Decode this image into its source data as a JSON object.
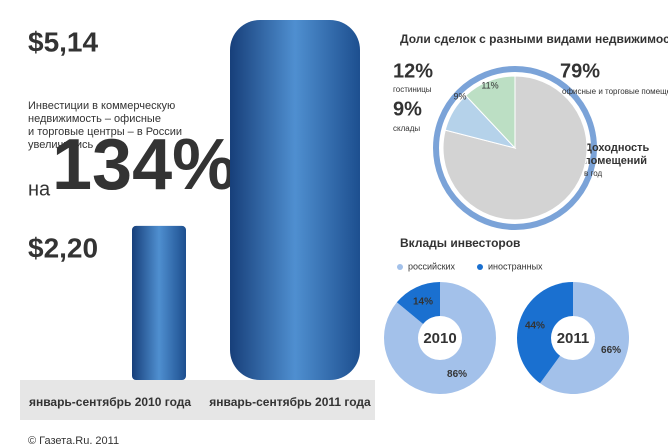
{
  "intro": {
    "text_lines": [
      "Инвестиции в коммерческую",
      "недвижимость – офисные",
      "и торговые центры – в России",
      "увеличились"
    ],
    "prefix": "на",
    "growth": "134%"
  },
  "footer": "© Газета.Ru, 2011",
  "chart_data": [
    {
      "type": "bar",
      "categories": [
        "январь-сентябрь 2010 года",
        "январь-сентябрь 2011 года"
      ],
      "values": [
        2.2,
        5.14
      ],
      "value_labels": [
        "$2,20",
        "$5,14"
      ],
      "color": "#3d7fc4"
    },
    {
      "type": "pie",
      "title": "Доли сделок с разными видами недвижимости",
      "categories": [
        "офисные и торговые помещения",
        "склады",
        "гостиницы"
      ],
      "values": [
        79,
        9,
        12
      ],
      "value_labels": [
        "79%",
        "9%",
        "12%"
      ],
      "colors": [
        "#d3d3d3",
        "#b5d2ea",
        "#bcdfc4"
      ],
      "wedge_labels": [
        "9%",
        "11%"
      ],
      "ring_label": [
        "Доходность",
        "помещений",
        "в год"
      ]
    },
    {
      "type": "donut",
      "title": "Вклады инвесторов",
      "legend": [
        "российских",
        "иностранных"
      ],
      "colors": [
        "#a3c1ea",
        "#1a70d0"
      ],
      "charts": [
        {
          "name": "2010",
          "values": [
            86,
            14
          ],
          "value_labels": [
            "86%",
            "14%"
          ]
        },
        {
          "name": "2011",
          "values": [
            66,
            44
          ],
          "value_labels": [
            "66%",
            "44%"
          ]
        }
      ]
    }
  ]
}
